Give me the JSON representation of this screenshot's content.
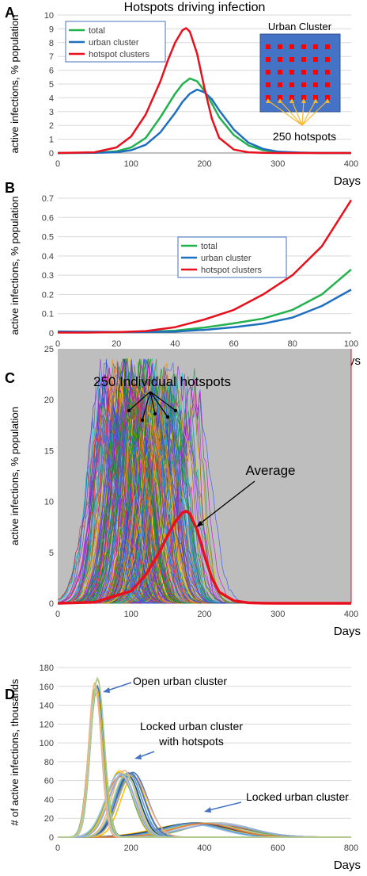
{
  "figure_title": "Hotspots driving infection",
  "chart_data": [
    {
      "panel": "A",
      "type": "line",
      "xlabel": "Days",
      "ylabel": "active infections, % population",
      "xlim": [
        0,
        400
      ],
      "ylim": [
        0,
        10
      ],
      "xticks": [
        0,
        100,
        200,
        300,
        400
      ],
      "yticks": [
        0,
        1,
        2,
        3,
        4,
        5,
        6,
        7,
        8,
        9,
        10
      ],
      "grid": "horizontal",
      "legend": "top-left",
      "series": [
        {
          "name": "total",
          "color": "#22b14c",
          "x": [
            0,
            50,
            80,
            100,
            120,
            140,
            160,
            170,
            180,
            190,
            200,
            210,
            220,
            240,
            260,
            280,
            300,
            330,
            360,
            400
          ],
          "y": [
            0,
            0.02,
            0.12,
            0.4,
            1.1,
            2.6,
            4.3,
            5.0,
            5.4,
            5.2,
            4.5,
            3.6,
            2.6,
            1.3,
            0.55,
            0.2,
            0.07,
            0.02,
            0,
            0
          ]
        },
        {
          "name": "urban cluster",
          "color": "#1f6fbf",
          "x": [
            0,
            50,
            80,
            100,
            120,
            140,
            160,
            170,
            180,
            190,
            200,
            210,
            220,
            240,
            260,
            280,
            300,
            330,
            360,
            400
          ],
          "y": [
            0,
            0.01,
            0.06,
            0.2,
            0.6,
            1.5,
            2.9,
            3.7,
            4.3,
            4.6,
            4.4,
            3.9,
            3.1,
            1.7,
            0.75,
            0.3,
            0.1,
            0.03,
            0,
            0
          ]
        },
        {
          "name": "hotspot clusters",
          "color": "#e8101c",
          "x": [
            0,
            50,
            80,
            100,
            120,
            140,
            150,
            160,
            170,
            175,
            180,
            190,
            200,
            210,
            220,
            240,
            260,
            280,
            300,
            400
          ],
          "y": [
            0,
            0.05,
            0.4,
            1.2,
            2.8,
            5.2,
            6.7,
            8.0,
            8.9,
            9.05,
            8.8,
            7.2,
            4.7,
            2.5,
            1.1,
            0.25,
            0.05,
            0.01,
            0,
            0
          ]
        }
      ],
      "inset": {
        "title": "Urban Cluster",
        "label": "250 hotspots",
        "grid_rows": 5,
        "grid_cols": 6,
        "fill_color": "#4472c4",
        "dot_color": "#ff0000",
        "arrow_color": "#f5b730"
      }
    },
    {
      "panel": "B",
      "type": "line",
      "xlabel": "Days",
      "ylabel": "active infections, % population",
      "xlim": [
        0,
        100
      ],
      "ylim": [
        0,
        0.7
      ],
      "xticks": [
        0,
        20,
        40,
        60,
        80,
        100
      ],
      "yticks": [
        0,
        0.1,
        0.2,
        0.3,
        0.4,
        0.5,
        0.6,
        0.7
      ],
      "grid": "horizontal",
      "legend": "center-right",
      "series": [
        {
          "name": "total",
          "color": "#22b14c",
          "x": [
            0,
            10,
            20,
            30,
            40,
            50,
            60,
            70,
            80,
            90,
            100
          ],
          "y": [
            0.004,
            0.003,
            0.004,
            0.006,
            0.012,
            0.028,
            0.05,
            0.075,
            0.12,
            0.2,
            0.33
          ]
        },
        {
          "name": "urban cluster",
          "color": "#1f6fbf",
          "x": [
            0,
            10,
            20,
            30,
            40,
            50,
            60,
            70,
            80,
            90,
            100
          ],
          "y": [
            0.008,
            0.006,
            0.005,
            0.005,
            0.007,
            0.016,
            0.03,
            0.048,
            0.08,
            0.14,
            0.225
          ]
        },
        {
          "name": "hotspot clusters",
          "color": "#e8101c",
          "x": [
            0,
            10,
            20,
            30,
            40,
            50,
            60,
            70,
            80,
            90,
            100
          ],
          "y": [
            0.002,
            0.002,
            0.004,
            0.01,
            0.03,
            0.07,
            0.12,
            0.2,
            0.3,
            0.45,
            0.69
          ]
        }
      ]
    },
    {
      "panel": "C",
      "type": "line",
      "xlabel": "Days",
      "ylabel": "active infections, % population",
      "xlim": [
        0,
        400
      ],
      "ylim": [
        0,
        25
      ],
      "xticks": [
        0,
        100,
        200,
        300,
        400
      ],
      "yticks": [
        0,
        5,
        10,
        15,
        20,
        25
      ],
      "background": "#bebebe",
      "annotations": [
        "250 Individual hotspots",
        "Average"
      ],
      "average_series": {
        "name": "Average",
        "color": "#e8101c",
        "x": [
          0,
          50,
          100,
          120,
          140,
          150,
          160,
          170,
          175,
          180,
          190,
          200,
          210,
          220,
          240,
          260,
          280,
          300,
          400
        ],
        "y": [
          0,
          0.1,
          1.2,
          2.8,
          5.2,
          6.7,
          8.0,
          8.9,
          9.05,
          8.8,
          7.2,
          4.7,
          2.5,
          1.1,
          0.25,
          0.05,
          0.01,
          0,
          0
        ]
      },
      "individual_hotspots": {
        "count": 250,
        "peak_range": [
          15,
          22.5
        ],
        "peak_day_range": [
          60,
          240
        ]
      }
    },
    {
      "panel": "D",
      "type": "line",
      "xlabel": "Days",
      "ylabel": "# of active infections, thousands",
      "xlim": [
        0,
        800
      ],
      "ylim": [
        0,
        180
      ],
      "xticks": [
        0,
        200,
        400,
        600,
        800
      ],
      "yticks": [
        0,
        20,
        40,
        60,
        80,
        100,
        120,
        140,
        160,
        180
      ],
      "grid": "horizontal",
      "annotations": [
        "Open urban cluster",
        "Locked urban cluster\nwith hotspots",
        "Locked urban cluster"
      ],
      "groups": [
        {
          "label": "Open urban cluster",
          "peak_day": 105,
          "peak_value": 167,
          "width": 18
        },
        {
          "label": "Locked urban cluster with hotspots",
          "peak_day": 185,
          "peak_value": 70,
          "width": 36
        },
        {
          "label": "Locked urban cluster",
          "peak_day": 400,
          "peak_value": 15,
          "width": 90
        }
      ]
    }
  ]
}
